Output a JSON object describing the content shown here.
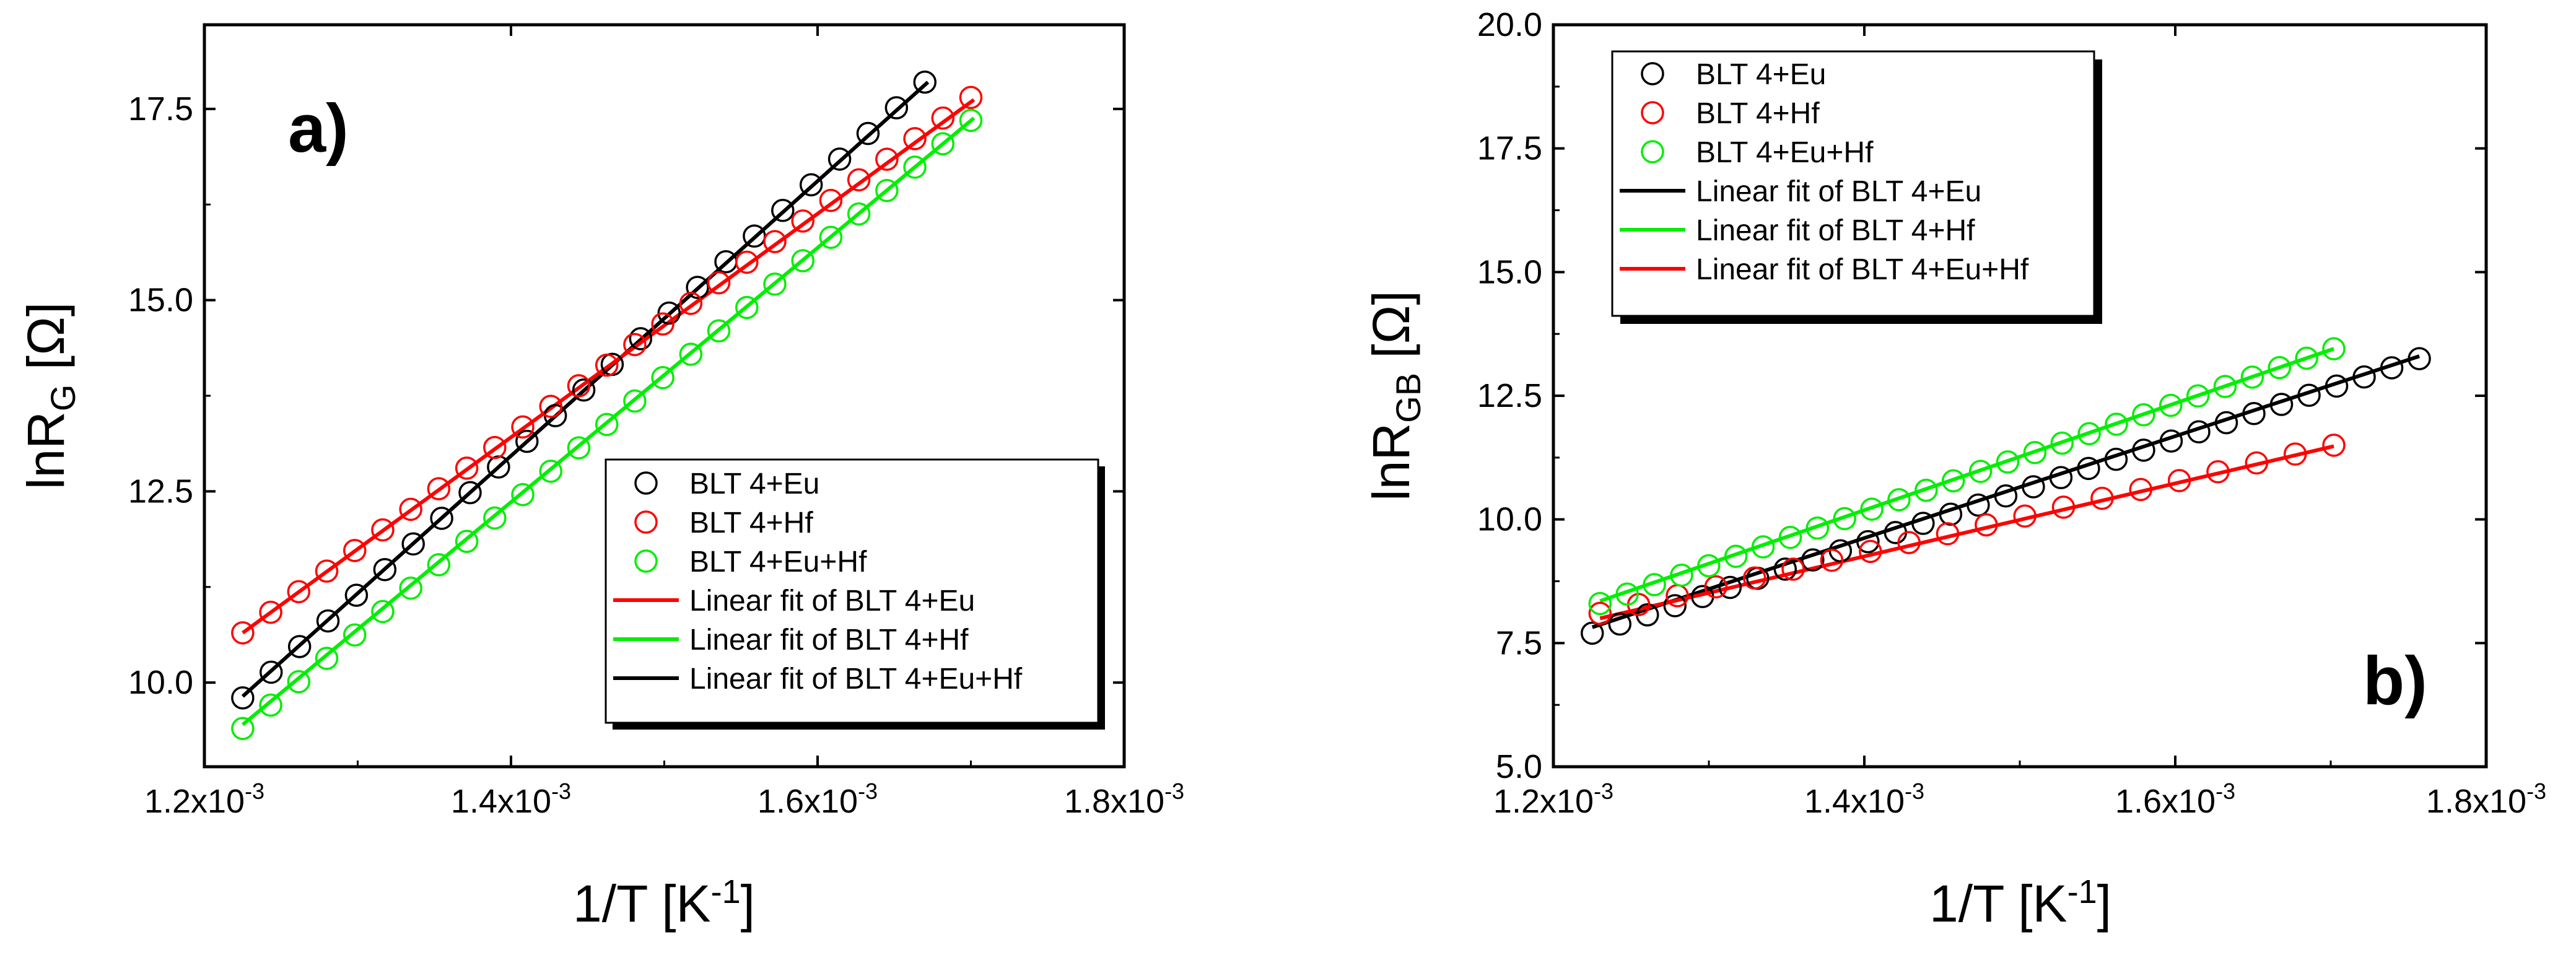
{
  "figure": {
    "background": "#ffffff"
  },
  "chart_data": [
    {
      "type": "scatter",
      "panel_label": "a)",
      "title": "",
      "xlabel": "1/T [K",
      "xlabel_sup": "-1",
      "xlabel_close": "]",
      "ylabel_main": "lnR",
      "ylabel_sub": "G",
      "ylabel_rest": " [Ω]",
      "xlim": [
        0.0012,
        0.0018
      ],
      "ylim": [
        8.9,
        18.6
      ],
      "xticks": [
        0.0012,
        0.0014,
        0.0016,
        0.0018
      ],
      "xtick_labels": [
        {
          "m": "1.2x10",
          "e": "-3"
        },
        {
          "m": "1.4x10",
          "e": "-3"
        },
        {
          "m": "1.6x10",
          "e": "-3"
        },
        {
          "m": "1.8x10",
          "e": "-3"
        }
      ],
      "yticks": [
        10.0,
        12.5,
        15.0,
        17.5
      ],
      "ytick_labels": [
        "10.0",
        "12.5",
        "15.0",
        "17.5"
      ],
      "legend": {
        "position": "bottom-right",
        "entries": [
          {
            "label": "BLT 4+Eu",
            "kind": "marker",
            "color": "#000000"
          },
          {
            "label": "BLT 4+Hf",
            "kind": "marker",
            "color": "#ff0000"
          },
          {
            "label": "BLT 4+Eu+Hf",
            "kind": "marker",
            "color": "#00ee00"
          },
          {
            "label": "Linear fit of BLT 4+Eu",
            "kind": "line",
            "color": "#ff0000"
          },
          {
            "label": "Linear fit of BLT 4+Hf",
            "kind": "line",
            "color": "#00ee00"
          },
          {
            "label": "Linear fit of BLT 4+Eu+Hf",
            "kind": "line",
            "color": "#000000"
          }
        ]
      },
      "series": [
        {
          "name": "BLT 4+Eu",
          "color": "#000000",
          "x_start": 0.001225,
          "x_end": 0.00167,
          "count": 25,
          "y_start": 9.8,
          "y_end": 17.85
        },
        {
          "name": "BLT 4+Hf",
          "color": "#ff0000",
          "x_start": 0.001225,
          "x_end": 0.0017,
          "count": 27,
          "y_start": 10.65,
          "y_end": 17.65
        },
        {
          "name": "BLT 4+Eu+Hf",
          "color": "#00ee00",
          "x_start": 0.001225,
          "x_end": 0.0017,
          "count": 27,
          "y_start": 9.4,
          "y_end": 17.35
        }
      ],
      "fits": [
        {
          "color": "#000000",
          "x": [
            0.001225,
            0.001672
          ],
          "y": [
            9.82,
            17.85
          ]
        },
        {
          "color": "#ff0000",
          "x": [
            0.001225,
            0.001702
          ],
          "y": [
            10.65,
            17.62
          ]
        },
        {
          "color": "#00ee00",
          "x": [
            0.001225,
            0.001702
          ],
          "y": [
            9.45,
            17.38
          ]
        }
      ]
    },
    {
      "type": "scatter",
      "panel_label": "b)",
      "title": "",
      "xlabel": "1/T [K",
      "xlabel_sup": "-1",
      "xlabel_close": "]",
      "ylabel_main": "lnR",
      "ylabel_sub": "GB",
      "ylabel_rest": " [Ω]",
      "xlim": [
        0.0012,
        0.0018
      ],
      "ylim": [
        5.0,
        20.0
      ],
      "xticks": [
        0.0012,
        0.0014,
        0.0016,
        0.0018
      ],
      "xtick_labels": [
        {
          "m": "1.2x10",
          "e": "-3"
        },
        {
          "m": "1.4x10",
          "e": "-3"
        },
        {
          "m": "1.6x10",
          "e": "-3"
        },
        {
          "m": "1.8x10",
          "e": "-3"
        }
      ],
      "yticks": [
        5.0,
        7.5,
        10.0,
        12.5,
        15.0,
        17.5,
        20.0
      ],
      "ytick_labels": [
        "5.0",
        "7.5",
        "10.0",
        "12.5",
        "15.0",
        "17.5",
        "20.0"
      ],
      "legend": {
        "position": "top-left",
        "entries": [
          {
            "label": "BLT 4+Eu",
            "kind": "marker",
            "color": "#000000"
          },
          {
            "label": "BLT 4+Hf",
            "kind": "marker",
            "color": "#ff0000"
          },
          {
            "label": "BLT 4+Eu+Hf",
            "kind": "marker",
            "color": "#00ee00"
          },
          {
            "label": "Linear fit of BLT 4+Eu",
            "kind": "line",
            "color": "#000000"
          },
          {
            "label": "Linear fit of BLT 4+Hf",
            "kind": "line",
            "color": "#00ee00"
          },
          {
            "label": "Linear fit of BLT 4+Eu+Hf",
            "kind": "line",
            "color": "#ff0000"
          }
        ]
      },
      "series": [
        {
          "name": "BLT 4+Eu",
          "color": "#000000",
          "x_start": 0.001225,
          "x_end": 0.001757,
          "count": 31,
          "y_start": 7.7,
          "y_end": 13.25
        },
        {
          "name": "BLT 4+Hf",
          "color": "#ff0000",
          "x_start": 0.00123,
          "x_end": 0.001702,
          "count": 20,
          "y_start": 8.1,
          "y_end": 11.5
        },
        {
          "name": "BLT 4+Eu+Hf",
          "color": "#00ee00",
          "x_start": 0.00123,
          "x_end": 0.001702,
          "count": 28,
          "y_start": 8.3,
          "y_end": 13.45
        }
      ],
      "fits": [
        {
          "color": "#000000",
          "x": [
            0.001225,
            0.001757
          ],
          "y": [
            7.82,
            13.3
          ]
        },
        {
          "color": "#00ee00",
          "x": [
            0.00123,
            0.001702
          ],
          "y": [
            8.35,
            13.45
          ]
        },
        {
          "color": "#ff0000",
          "x": [
            0.00123,
            0.001702
          ],
          "y": [
            8.0,
            11.48
          ]
        }
      ]
    }
  ]
}
